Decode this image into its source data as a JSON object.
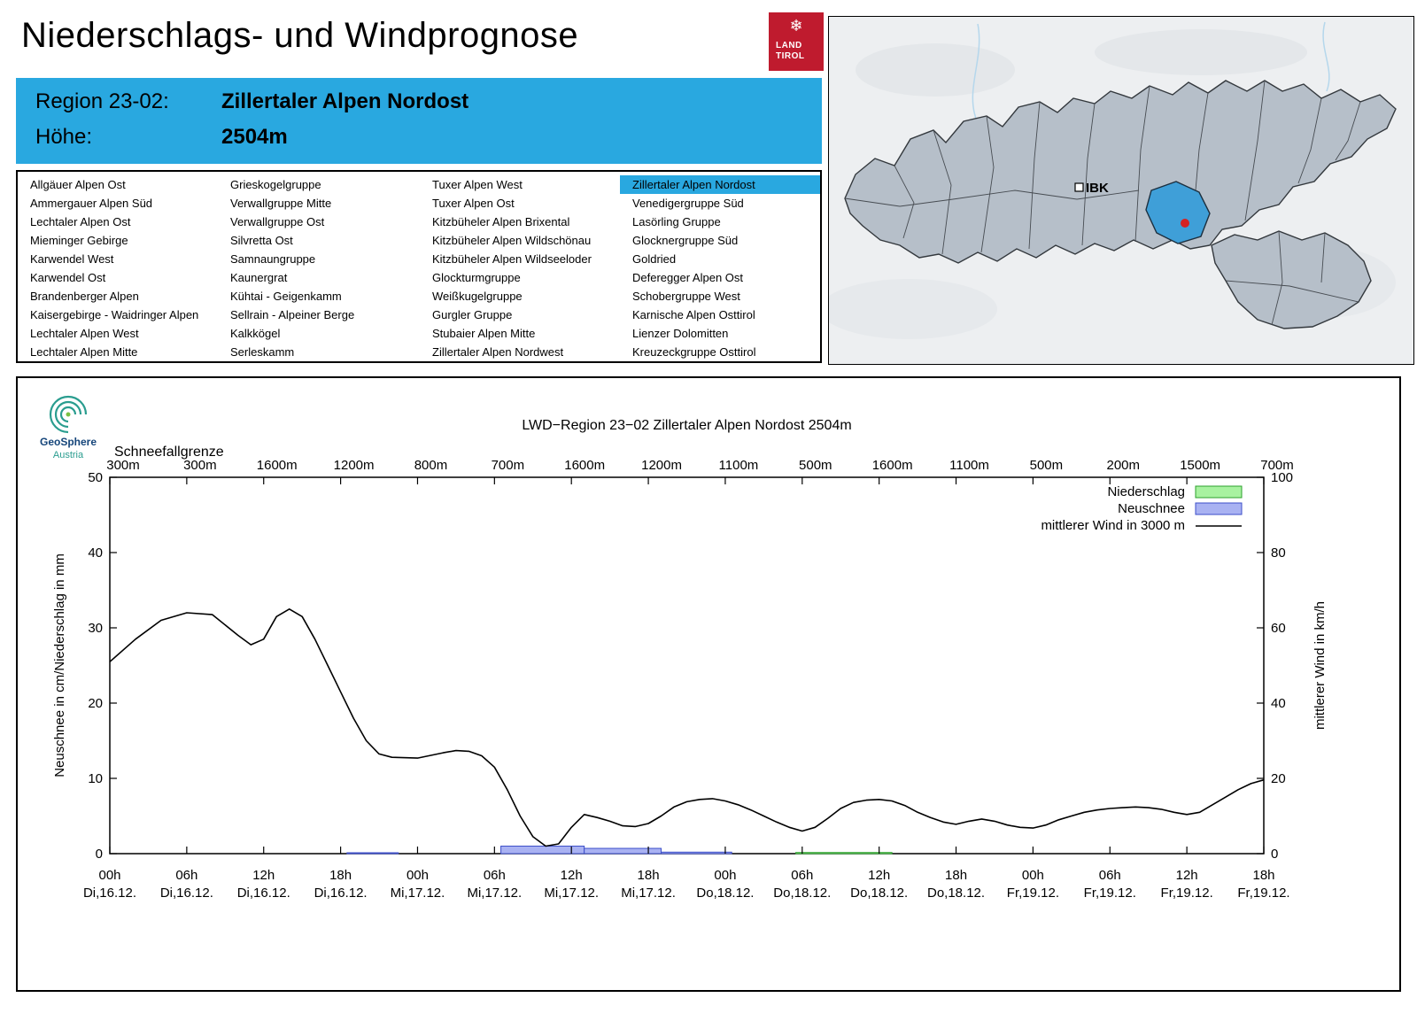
{
  "page": {
    "title": "Niederschlags- und Windprognose"
  },
  "logo": {
    "line1": "LAND",
    "line2": "TIROL",
    "color": "#bf1b2e",
    "icon": "snowflake"
  },
  "region_info": {
    "region_label": "Region 23-02:",
    "region_name": "Zillertaler Alpen Nordost",
    "elevation_label": "Höhe:",
    "elevation_value": "2504m",
    "accent_color": "#29a8e0"
  },
  "region_list": {
    "selected": "Zillertaler Alpen Nordost",
    "columns": [
      [
        "Allgäuer Alpen Ost",
        "Ammergauer Alpen Süd",
        "Lechtaler Alpen Ost",
        "Mieminger Gebirge",
        "Karwendel West",
        "Karwendel Ost",
        "Brandenberger Alpen",
        "Kaisergebirge - Waidringer Alpen",
        "Lechtaler Alpen West",
        "Lechtaler Alpen Mitte"
      ],
      [
        "Grieskogelgruppe",
        "Verwallgruppe Mitte",
        "Verwallgruppe Ost",
        "Silvretta Ost",
        "Samnaungruppe",
        "Kaunergrat",
        "Kühtai - Geigenkamm",
        "Sellrain - Alpeiner Berge",
        "Kalkkögel",
        "Serleskamm"
      ],
      [
        "Tuxer Alpen West",
        "Tuxer Alpen Ost",
        "Kitzbüheler Alpen Brixental",
        "Kitzbüheler Alpen Wildschönau",
        "Kitzbüheler Alpen Wildseeloder",
        "Glockturmgruppe",
        "Weißkugelgruppe",
        "Gurgler Gruppe",
        "Stubaier Alpen Mitte",
        "Zillertaler Alpen Nordwest"
      ],
      [
        "Zillertaler Alpen Nordost",
        "Venedigergruppe Süd",
        "Lasörling Gruppe",
        "Glocknergruppe Süd",
        "Goldried",
        "Deferegger Alpen Ost",
        "Schobergruppe West",
        "Karnische Alpen Osttirol",
        "Lienzer Dolomitten",
        "Kreuzeckgruppe Osttirol"
      ]
    ]
  },
  "map": {
    "city_label": "IBK",
    "highlight_color": "#3f9fd8",
    "marker_color": "#d42222",
    "land_color": "#b6bfc9"
  },
  "chart_data": {
    "type": "line",
    "title": "LWD−Region 23−02 Zillertaler Alpen Nordost 2504m",
    "watermark": {
      "name": "GeoSphere",
      "sub": "Austria",
      "name_color": "#15457a",
      "sub_color": "#2a9d8f",
      "icon_color": "#2a9d8f"
    },
    "snowline": {
      "label": "Schneefallgrenze",
      "values": [
        "300m",
        "300m",
        "1600m",
        "1200m",
        "800m",
        "700m",
        "1600m",
        "1200m",
        "1100m",
        "500m",
        "1600m",
        "1100m",
        "500m",
        "200m",
        "1500m",
        "700m"
      ]
    },
    "ylabel_left": "Neuschnee in cm/Niederschlag in mm",
    "ylabel_right": "mittlerer Wind in km/h",
    "ylim_left": [
      0,
      50
    ],
    "ylim_right": [
      0,
      100
    ],
    "yticks_left": [
      0,
      10,
      20,
      30,
      40,
      50
    ],
    "yticks_right": [
      0,
      20,
      40,
      60,
      80,
      100
    ],
    "x_range_hours": [
      0,
      90
    ],
    "x_ticks": [
      {
        "time": "00h",
        "date": "Di,16.12."
      },
      {
        "time": "06h",
        "date": "Di,16.12."
      },
      {
        "time": "12h",
        "date": "Di,16.12."
      },
      {
        "time": "18h",
        "date": "Di,16.12."
      },
      {
        "time": "00h",
        "date": "Mi,17.12."
      },
      {
        "time": "06h",
        "date": "Mi,17.12."
      },
      {
        "time": "12h",
        "date": "Mi,17.12."
      },
      {
        "time": "18h",
        "date": "Mi,17.12."
      },
      {
        "time": "00h",
        "date": "Do,18.12."
      },
      {
        "time": "06h",
        "date": "Do,18.12."
      },
      {
        "time": "12h",
        "date": "Do,18.12."
      },
      {
        "time": "18h",
        "date": "Do,18.12."
      },
      {
        "time": "00h",
        "date": "Fr,19.12."
      },
      {
        "time": "06h",
        "date": "Fr,19.12."
      },
      {
        "time": "12h",
        "date": "Fr,19.12."
      },
      {
        "time": "18h",
        "date": "Fr,19.12."
      }
    ],
    "legend": [
      {
        "label": "Niederschlag",
        "type": "box",
        "fill": "#a8f2a0",
        "stroke": "#2ca02c"
      },
      {
        "label": "Neuschnee",
        "type": "box",
        "fill": "#a9b2f2",
        "stroke": "#3d4fc9"
      },
      {
        "label": "mittlerer Wind in 3000 m",
        "type": "line",
        "stroke": "#000000"
      }
    ],
    "wind_series": {
      "name": "mittlerer Wind in 3000 m",
      "unit": "km/h",
      "axis": "right",
      "points": [
        [
          0,
          51
        ],
        [
          2,
          57
        ],
        [
          4,
          62
        ],
        [
          6,
          64
        ],
        [
          8,
          63.5
        ],
        [
          10,
          58
        ],
        [
          11,
          55.5
        ],
        [
          12,
          57
        ],
        [
          13,
          63
        ],
        [
          14,
          65
        ],
        [
          15,
          63
        ],
        [
          16,
          57
        ],
        [
          17,
          50
        ],
        [
          18,
          43
        ],
        [
          19,
          36
        ],
        [
          20,
          30
        ],
        [
          21,
          26.5
        ],
        [
          22,
          25.6
        ],
        [
          24,
          25.4
        ],
        [
          26,
          26.8
        ],
        [
          27,
          27.4
        ],
        [
          28,
          27.2
        ],
        [
          29,
          26
        ],
        [
          30,
          23
        ],
        [
          31,
          17
        ],
        [
          32,
          10
        ],
        [
          33,
          4.5
        ],
        [
          34,
          2
        ],
        [
          35,
          2.6
        ],
        [
          36,
          7
        ],
        [
          37,
          10.4
        ],
        [
          38,
          9.6
        ],
        [
          39,
          8.6
        ],
        [
          40,
          7.4
        ],
        [
          41,
          7.2
        ],
        [
          42,
          8
        ],
        [
          43,
          10
        ],
        [
          44,
          12.4
        ],
        [
          45,
          13.8
        ],
        [
          46,
          14.4
        ],
        [
          47,
          14.6
        ],
        [
          48,
          14
        ],
        [
          49,
          13
        ],
        [
          50,
          11.6
        ],
        [
          51,
          10
        ],
        [
          52,
          8.4
        ],
        [
          53,
          7
        ],
        [
          54,
          6
        ],
        [
          55,
          7
        ],
        [
          56,
          9.4
        ],
        [
          57,
          12
        ],
        [
          58,
          13.6
        ],
        [
          59,
          14.2
        ],
        [
          60,
          14.4
        ],
        [
          61,
          14
        ],
        [
          62,
          12.8
        ],
        [
          63,
          11
        ],
        [
          64,
          9.6
        ],
        [
          65,
          8.4
        ],
        [
          66,
          7.8
        ],
        [
          67,
          8.6
        ],
        [
          68,
          9.2
        ],
        [
          69,
          8.6
        ],
        [
          70,
          7.6
        ],
        [
          71,
          7
        ],
        [
          72,
          6.8
        ],
        [
          73,
          7.6
        ],
        [
          74,
          9
        ],
        [
          75,
          10
        ],
        [
          76,
          11
        ],
        [
          77,
          11.6
        ],
        [
          78,
          12
        ],
        [
          79,
          12.2
        ],
        [
          80,
          12.4
        ],
        [
          81,
          12.2
        ],
        [
          82,
          11.8
        ],
        [
          83,
          11
        ],
        [
          84,
          10.4
        ],
        [
          85,
          11
        ],
        [
          86,
          13
        ],
        [
          87,
          15
        ],
        [
          88,
          17
        ],
        [
          89,
          18.6
        ],
        [
          90,
          19.6
        ]
      ]
    },
    "bars": {
      "neuschnee": {
        "unit": "cm",
        "segments": [
          {
            "from": 18.5,
            "to": 22.5,
            "value": 0.12
          },
          {
            "from": 30.5,
            "to": 37,
            "value": 1.0
          },
          {
            "from": 37,
            "to": 43,
            "value": 0.7
          },
          {
            "from": 43,
            "to": 48.5,
            "value": 0.2
          }
        ]
      },
      "niederschlag": {
        "unit": "mm",
        "segments": [
          {
            "from": 53.5,
            "to": 61,
            "value": 0.15
          }
        ]
      }
    }
  }
}
